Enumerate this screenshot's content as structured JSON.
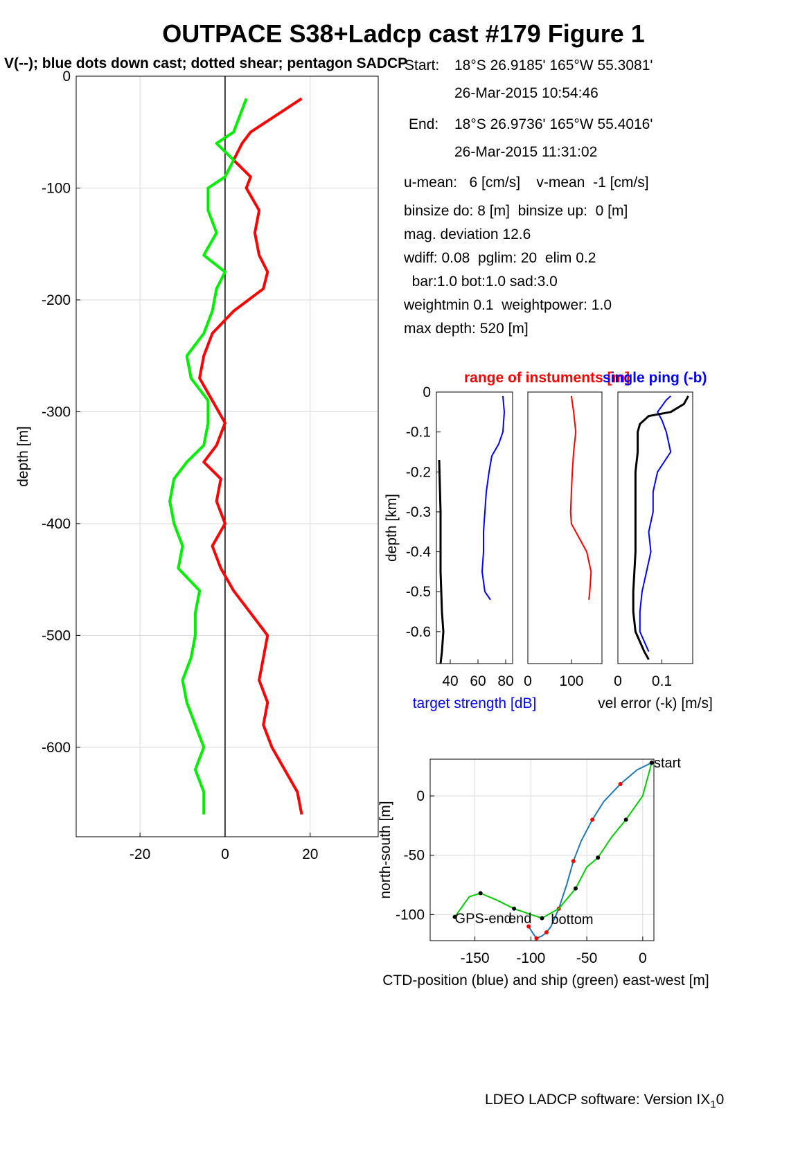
{
  "header": {
    "title": "OUTPACE S38+Ladcp cast #179  Figure 1",
    "subtitle": "V(--); blue dots down cast; dotted shear; pentagon SADCP"
  },
  "info": {
    "start_label": "Start:",
    "start_position": "18°S 26.9185'      165°W 55.3081'",
    "start_time": "26-Mar-2015 10:54:46",
    "end_label": "End:",
    "end_position": "18°S 26.9736'      165°W 55.4016'",
    "end_time": "26-Mar-2015 11:31:02",
    "lines": [
      "u-mean:   6 [cm/s]    v-mean  -1 [cm/s]",
      "binsize do: 8 [m]  binsize up:  0 [m]",
      "mag. deviation 12.6",
      "wdiff: 0.08  pglim: 20  elim 0.2",
      "  bar:1.0 bot:1.0 sad:3.0",
      "weightmin 0.1  weightpower: 1.0",
      "max depth: 520 [m]"
    ]
  },
  "footer": {
    "software": "LDEO LADCP software: Version IX",
    "subscript": "1",
    "suffix": "0"
  },
  "colors": {
    "v_profile": "#00ee00",
    "u_profile": "#ff0000",
    "blue": "#0000ff",
    "ctd": "#1f77b4",
    "ship": "#00cc00",
    "link": "#ffff00"
  },
  "chart_data": [
    {
      "type": "line",
      "name": "velocity_profiles",
      "ylabel": "depth [m]",
      "xlim": [
        -35,
        36
      ],
      "ylim": [
        -680,
        0
      ],
      "xticks": [
        -20,
        0,
        20
      ],
      "yticks": [
        0,
        -100,
        -200,
        -300,
        -400,
        -500,
        -600
      ],
      "grid": true,
      "series": [
        {
          "color": "red",
          "depth": [
            -20,
            -50,
            -60,
            -75,
            -90,
            -100,
            -120,
            -140,
            -160,
            -175,
            -190,
            -210,
            -230,
            -250,
            -270,
            -290,
            -310,
            -330,
            -345,
            -360,
            -380,
            -400,
            -420,
            -440,
            -460,
            -480,
            -500,
            -520,
            -540,
            -560,
            -580,
            -600,
            -620,
            -640,
            -660
          ],
          "values": [
            18,
            6,
            4,
            2,
            6,
            5,
            8,
            7,
            8,
            10,
            9,
            2,
            -3,
            -5,
            -6,
            -3,
            0,
            -2,
            -5,
            -1,
            -2,
            0,
            -3,
            -1,
            2,
            6,
            10,
            9,
            8,
            10,
            9,
            11,
            14,
            17,
            18
          ]
        },
        {
          "color": "green",
          "depth": [
            -20,
            -50,
            -60,
            -75,
            -90,
            -100,
            -120,
            -140,
            -160,
            -175,
            -190,
            -210,
            -230,
            -250,
            -270,
            -290,
            -310,
            -330,
            -345,
            -360,
            -380,
            -400,
            -420,
            -440,
            -460,
            -480,
            -500,
            -520,
            -540,
            -560,
            -580,
            -600,
            -620,
            -640,
            -660
          ],
          "values": [
            5,
            2,
            -2,
            2,
            0,
            -4,
            -4,
            -2,
            -5,
            0,
            -2,
            -3,
            -5,
            -9,
            -8,
            -4,
            -4,
            -5,
            -9,
            -12,
            -13,
            -12,
            -10,
            -11,
            -6,
            -7,
            -7,
            -8,
            -10,
            -9,
            -7,
            -5,
            -7,
            -5,
            -5
          ]
        }
      ]
    },
    {
      "type": "line",
      "name": "target_strength",
      "title_red": "range of instuments [m]",
      "title_blue": "single ping (-b)",
      "ylabel": "depth [km]",
      "xlabel": "target strength [dB]",
      "xlim": [
        30,
        85
      ],
      "ylim": [
        -0.68,
        0
      ],
      "xticks": [
        40,
        60,
        80
      ],
      "yticks": [
        0,
        -0.1,
        -0.2,
        -0.3,
        -0.4,
        -0.5,
        -0.6
      ],
      "series": [
        {
          "color": "blue",
          "depth": [
            -0.01,
            -0.05,
            -0.1,
            -0.13,
            -0.16,
            -0.2,
            -0.25,
            -0.3,
            -0.35,
            -0.4,
            -0.45,
            -0.5,
            -0.52
          ],
          "values": [
            78,
            79,
            78,
            75,
            70,
            68,
            66,
            65,
            64,
            64,
            63,
            65,
            69
          ]
        },
        {
          "color": "black",
          "depth": [
            -0.17,
            -0.3,
            -0.45,
            -0.55,
            -0.6,
            -0.65,
            -0.68
          ],
          "values": [
            32,
            33,
            33,
            34,
            35,
            34,
            33
          ]
        }
      ]
    },
    {
      "type": "line",
      "name": "instrument_range",
      "xlim": [
        0,
        170
      ],
      "ylim": [
        -0.68,
        0
      ],
      "xticks": [
        0,
        100
      ],
      "series": [
        {
          "color": "red",
          "depth": [
            -0.01,
            -0.05,
            -0.1,
            -0.15,
            -0.2,
            -0.25,
            -0.3,
            -0.33,
            -0.36,
            -0.4,
            -0.45,
            -0.5,
            -0.52
          ],
          "values": [
            100,
            105,
            110,
            105,
            102,
            100,
            98,
            100,
            115,
            135,
            145,
            142,
            140
          ]
        }
      ]
    },
    {
      "type": "line",
      "name": "velocity_error",
      "xlabel": "vel error (-k) [m/s]",
      "xlim": [
        0,
        0.17
      ],
      "ylim": [
        -0.68,
        0
      ],
      "xticks": [
        0,
        0.1
      ],
      "series": [
        {
          "color": "blue",
          "depth": [
            -0.01,
            -0.02,
            -0.05,
            -0.07,
            -0.1,
            -0.15,
            -0.2,
            -0.25,
            -0.3,
            -0.35,
            -0.4,
            -0.45,
            -0.5,
            -0.55,
            -0.6,
            -0.65
          ],
          "values": [
            0.12,
            0.11,
            0.09,
            0.1,
            0.11,
            0.12,
            0.09,
            0.08,
            0.08,
            0.07,
            0.075,
            0.065,
            0.055,
            0.05,
            0.05,
            0.07
          ]
        },
        {
          "color": "black",
          "depth": [
            -0.01,
            -0.03,
            -0.05,
            -0.06,
            -0.08,
            -0.1,
            -0.15,
            -0.2,
            -0.3,
            -0.4,
            -0.5,
            -0.55,
            -0.6,
            -0.65,
            -0.67
          ],
          "values": [
            0.16,
            0.15,
            0.12,
            0.07,
            0.05,
            0.045,
            0.045,
            0.04,
            0.04,
            0.04,
            0.035,
            0.035,
            0.04,
            0.06,
            0.07
          ]
        }
      ]
    },
    {
      "type": "line",
      "name": "ctd_ship_position",
      "xlabel": "CTD-position (blue) and ship (green) east-west [m]",
      "ylabel": "north-south [m]",
      "xlim": [
        -190,
        10
      ],
      "ylim": [
        -122,
        31
      ],
      "xticks": [
        -150,
        -100,
        -50,
        0
      ],
      "yticks": [
        0,
        -50,
        -100
      ],
      "grid": true,
      "annotations": [
        {
          "text": "start",
          "x": 10,
          "y": 28
        },
        {
          "text": "GPS-end",
          "x": -168,
          "y": -103
        },
        {
          "text": "end",
          "x": -120,
          "y": -103
        },
        {
          "text": "bottom",
          "x": -82,
          "y": -104
        }
      ],
      "series": [
        {
          "color": "ctd",
          "x": [
            8,
            -5,
            -20,
            -35,
            -45,
            -55,
            -62,
            -68,
            -75,
            -82,
            -86,
            -90,
            -95,
            -98,
            -102
          ],
          "y": [
            28,
            22,
            10,
            -5,
            -20,
            -38,
            -55,
            -75,
            -95,
            -110,
            -115,
            -118,
            -120,
            -116,
            -110
          ]
        },
        {
          "color": "ship",
          "x": [
            8,
            0,
            -15,
            -28,
            -40,
            -50,
            -60,
            -75,
            -90,
            -100,
            -115,
            -130,
            -145,
            -155,
            -168
          ],
          "y": [
            28,
            0,
            -20,
            -35,
            -52,
            -60,
            -78,
            -95,
            -103,
            -100,
            -95,
            -88,
            -82,
            -85,
            -102
          ]
        }
      ]
    }
  ]
}
